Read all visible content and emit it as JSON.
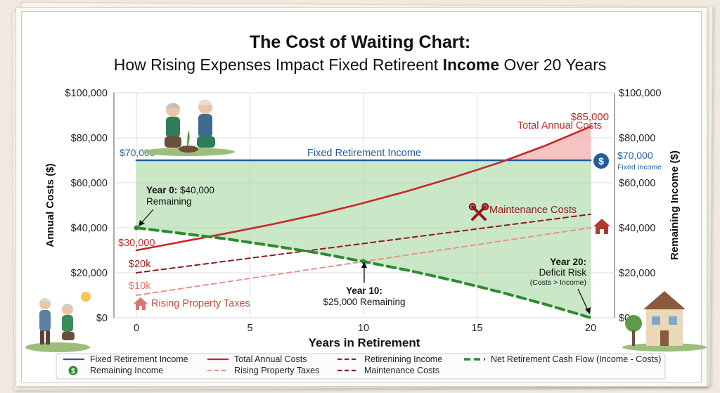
{
  "chart_data": {
    "type": "line",
    "title": "The Cost of Waiting Chart:",
    "subtitle_parts": [
      "How Rising Expenses Impact Fixed Retireent ",
      "Income",
      " Over 20 Years"
    ],
    "xlabel": "Years in Retirement",
    "ylabel_left": "Annual Costs ($)",
    "ylabel_right": "Remaining Income ($)",
    "xlim": [
      0,
      20
    ],
    "ylim": [
      0,
      100000
    ],
    "x_ticks": [
      0,
      5,
      10,
      15,
      20
    ],
    "x_tick_labels": [
      "0",
      "5",
      "10",
      "15",
      "20"
    ],
    "y_ticks": [
      0,
      20000,
      40000,
      60000,
      80000,
      100000
    ],
    "y_tick_labels": [
      "$0",
      "$20,000",
      "$40,000",
      "$60,000",
      "$80,000",
      "$100,000"
    ],
    "grid": true,
    "series": [
      {
        "name": "Fixed Retirement Income",
        "color": "#1f5f9e",
        "style": "solid",
        "x": [
          0,
          20
        ],
        "y": [
          70000,
          70000
        ]
      },
      {
        "name": "Total Annual Costs",
        "color": "#c62828",
        "style": "solid",
        "x": [
          0,
          2,
          4,
          6,
          8,
          10,
          12,
          14,
          16,
          18,
          20
        ],
        "y": [
          30000,
          33800,
          37600,
          41600,
          46000,
          51000,
          56500,
          62500,
          69000,
          76500,
          85000
        ]
      },
      {
        "name": "Rising Property Taxes",
        "color": "#e8938b",
        "style": "dashed",
        "x": [
          0,
          20
        ],
        "y": [
          10000,
          40000
        ]
      },
      {
        "name": "Maintenance Costs",
        "color": "#8e1b1b",
        "style": "dashed",
        "x": [
          0,
          20
        ],
        "y": [
          20000,
          46000
        ]
      },
      {
        "name": "Net Retirement Cash Flow (Income - Costs)",
        "color": "#2e8b2e",
        "style": "dashed",
        "x": [
          0,
          2,
          4,
          6,
          8,
          10,
          12,
          14,
          16,
          18,
          20
        ],
        "y": [
          40000,
          37500,
          35000,
          32000,
          28800,
          25000,
          21000,
          16500,
          11500,
          6000,
          0
        ]
      }
    ],
    "annotations": {
      "income_label": "Fixed Retirement Income",
      "income_left_value": "$70,000",
      "income_right_value": "$70,000",
      "income_right_sub": "Fixed Income",
      "costs_end_value": "$85,000",
      "costs_label": "Total Annual Costs",
      "costs_start_value": "$30,000",
      "maint_label": "Maintenance Costs",
      "maint_start_value": "$20k",
      "tax_start_value": "$10k",
      "tax_label": "Rising Property Taxes",
      "year0_bold": "Year 0:",
      "year0_rest": " $40,000",
      "year0_line2": "Remaining",
      "year10_line1": "Year 10:",
      "year10_line2": "$25,000 Remaining",
      "year20_line1": "Year 20:",
      "year20_line2": "Deficit Risk",
      "year20_line3": "(Costs > Income)"
    },
    "legend": {
      "placement": "bottom",
      "items": [
        {
          "label": "Fixed Retirement Income",
          "color": "#1f5f9e",
          "style": "solid"
        },
        {
          "label": "Total Annual Costs",
          "color": "#c62828",
          "style": "solid"
        },
        {
          "label": "Retirenining Income",
          "color": "#8e1b1b",
          "style": "dashed"
        },
        {
          "label": "Net Retirement Cash Flow (Income - Costs)",
          "color": "#2e8b2e",
          "style": "dashed"
        },
        {
          "label": "Remaining Income",
          "color": "#2e8b2e",
          "style": "icon"
        },
        {
          "label": "Rising Property Taxes",
          "color": "#e8938b",
          "style": "dashed"
        },
        {
          "label": "Maintenance Costs",
          "color": "#8e1b1b",
          "style": "dashed"
        }
      ]
    }
  },
  "icons": {
    "dollar": "$",
    "dollar_color": "#1f5f9e",
    "remaining_dollar_color": "#2e8b2e",
    "house_color": "#b03a2e",
    "wrench_color": "#8e1b1b"
  }
}
